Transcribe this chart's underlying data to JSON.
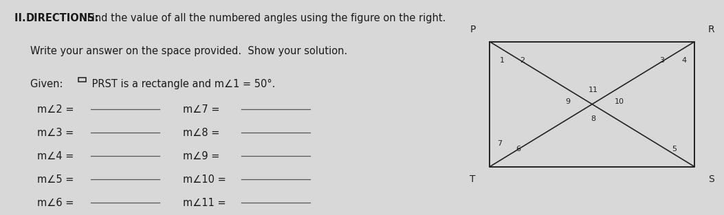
{
  "title_bold": "II. DIRECTIONS:",
  "title_normal": " Find the value of all the numbered angles using the figure on the right.",
  "line2": "Write your answer on the space provided.  Show your solution.",
  "line3_prefix": "Given: ",
  "line3_suffix": " PRST is a rectangle and m∠1 = 50°.",
  "left_labels": [
    "m∠2 =",
    "m∠3 =",
    "m∠4 =",
    "m∠5 =",
    "m∠6 ="
  ],
  "right_labels": [
    "m∠7 =",
    "m∠8 =",
    "m∠9 =",
    "m∠10 =",
    "m∠11 ="
  ],
  "bg_color": "#d8d8d8",
  "text_color": "#1a1a1a",
  "geo_bg": "#d0d0d0"
}
